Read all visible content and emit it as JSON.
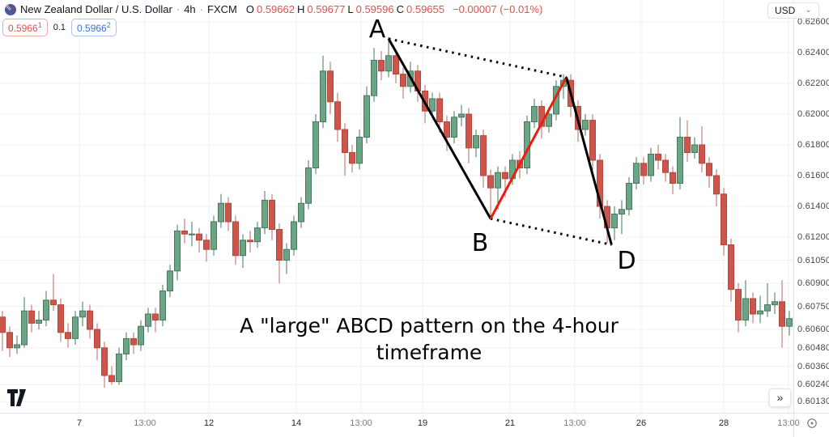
{
  "header": {
    "symbol_title": "New Zealand Dollar / U.S. Dollar",
    "separator": "·",
    "interval": "4h",
    "exchange": "FXCM",
    "ohlc": {
      "o_label": "O",
      "o": "0.59662",
      "h_label": "H",
      "h": "0.59677",
      "l_label": "L",
      "l": "0.59596",
      "c_label": "C",
      "c": "0.59655",
      "change": "−0.00007 (−0.01%)"
    },
    "bid": {
      "value": "0.5966",
      "sup": "1"
    },
    "spread": "0.1",
    "ask": {
      "value": "0.5966",
      "sup": "2"
    },
    "currency_button": {
      "label": "USD",
      "chevron": "⌄"
    }
  },
  "caption": {
    "line1": "A \"large\" ABCD pattern on the 4-hour",
    "line2": "timeframe"
  },
  "footer": {
    "collapse_button": "»"
  },
  "axes": {
    "price_labels": [
      "0.62600",
      "0.62400",
      "0.62200",
      "0.62000",
      "0.61800",
      "0.61600",
      "0.61400",
      "0.61200",
      "0.61050",
      "0.60900",
      "0.60750",
      "0.60600",
      "0.60480",
      "0.60360",
      "0.60240",
      "0.60130"
    ],
    "time_labels": [
      {
        "text": "7",
        "x": 98,
        "major": true
      },
      {
        "text": "13:00",
        "x": 179,
        "major": false
      },
      {
        "text": "12",
        "x": 258,
        "major": true
      },
      {
        "text": "14",
        "x": 366,
        "major": true
      },
      {
        "text": "13:00",
        "x": 446,
        "major": false
      },
      {
        "text": "19",
        "x": 522,
        "major": true
      },
      {
        "text": "21",
        "x": 630,
        "major": true
      },
      {
        "text": "13:00",
        "x": 710,
        "major": false
      },
      {
        "text": "26",
        "x": 792,
        "major": true
      },
      {
        "text": "28",
        "x": 894,
        "major": true
      },
      {
        "text": "13:00",
        "x": 974,
        "major": false
      }
    ]
  },
  "colors": {
    "up": "#6ba583",
    "up_border": "#47775f",
    "up_wick": "#47775f",
    "down": "#cc564c",
    "down_border": "#b2463c",
    "down_wick": "#bb6b60",
    "grid": "#eff2f5",
    "axis_line": "#e0e3eb",
    "pattern_black": "#000000",
    "pattern_red": "#ec1c0e",
    "bid_red": "#e0524e",
    "ask_blue": "#3c6ff0"
  },
  "chart_data": {
    "type": "candlestick",
    "interval": "4h",
    "ylim": [
      0.6009,
      0.6264
    ],
    "candles": [
      [
        0.6068,
        0.6072,
        0.6046,
        0.6058
      ],
      [
        0.6058,
        0.6062,
        0.6042,
        0.6048
      ],
      [
        0.6048,
        0.6056,
        0.6044,
        0.605
      ],
      [
        0.605,
        0.6081,
        0.6048,
        0.6072
      ],
      [
        0.6072,
        0.6076,
        0.6058,
        0.6064
      ],
      [
        0.6064,
        0.6072,
        0.606,
        0.6066
      ],
      [
        0.6066,
        0.6085,
        0.6062,
        0.6079
      ],
      [
        0.6079,
        0.6096,
        0.6072,
        0.6076
      ],
      [
        0.6076,
        0.608,
        0.6052,
        0.6058
      ],
      [
        0.6058,
        0.6064,
        0.6048,
        0.6054
      ],
      [
        0.6054,
        0.6072,
        0.605,
        0.6068
      ],
      [
        0.6068,
        0.6078,
        0.6062,
        0.6072
      ],
      [
        0.6072,
        0.6076,
        0.6054,
        0.606
      ],
      [
        0.606,
        0.6064,
        0.604,
        0.6048
      ],
      [
        0.6048,
        0.6052,
        0.6022,
        0.603
      ],
      [
        0.603,
        0.6036,
        0.6024,
        0.6026
      ],
      [
        0.6026,
        0.6048,
        0.6024,
        0.6044
      ],
      [
        0.6044,
        0.6058,
        0.604,
        0.6054
      ],
      [
        0.6054,
        0.6058,
        0.6044,
        0.605
      ],
      [
        0.605,
        0.6066,
        0.6046,
        0.6062
      ],
      [
        0.6062,
        0.6074,
        0.6058,
        0.607
      ],
      [
        0.607,
        0.6074,
        0.6058,
        0.6066
      ],
      [
        0.6066,
        0.6089,
        0.6062,
        0.6085
      ],
      [
        0.6085,
        0.6102,
        0.6081,
        0.6098
      ],
      [
        0.6098,
        0.6128,
        0.6092,
        0.6124
      ],
      [
        0.6124,
        0.6132,
        0.6116,
        0.6122
      ],
      [
        0.6122,
        0.613,
        0.6114,
        0.6122
      ],
      [
        0.6122,
        0.6126,
        0.611,
        0.6118
      ],
      [
        0.6118,
        0.6122,
        0.6104,
        0.6112
      ],
      [
        0.6112,
        0.6134,
        0.6108,
        0.613
      ],
      [
        0.613,
        0.6148,
        0.6126,
        0.6142
      ],
      [
        0.6142,
        0.6146,
        0.6124,
        0.613
      ],
      [
        0.613,
        0.6134,
        0.6102,
        0.6108
      ],
      [
        0.6108,
        0.6122,
        0.61,
        0.6118
      ],
      [
        0.6118,
        0.6124,
        0.611,
        0.6117
      ],
      [
        0.6117,
        0.613,
        0.6113,
        0.6126
      ],
      [
        0.6126,
        0.615,
        0.6122,
        0.6144
      ],
      [
        0.6144,
        0.6148,
        0.6118,
        0.6125
      ],
      [
        0.6125,
        0.6129,
        0.609,
        0.6105
      ],
      [
        0.6105,
        0.6116,
        0.6096,
        0.6112
      ],
      [
        0.6112,
        0.6134,
        0.6108,
        0.613
      ],
      [
        0.613,
        0.6146,
        0.6126,
        0.6142
      ],
      [
        0.6142,
        0.617,
        0.6138,
        0.6165
      ],
      [
        0.6165,
        0.62,
        0.6161,
        0.6195
      ],
      [
        0.6195,
        0.6238,
        0.6191,
        0.6228
      ],
      [
        0.6228,
        0.6234,
        0.62,
        0.6208
      ],
      [
        0.6208,
        0.6214,
        0.6182,
        0.619
      ],
      [
        0.619,
        0.6194,
        0.616,
        0.6175
      ],
      [
        0.6175,
        0.618,
        0.6162,
        0.6168
      ],
      [
        0.6168,
        0.619,
        0.6164,
        0.6185
      ],
      [
        0.6185,
        0.6218,
        0.6181,
        0.6212
      ],
      [
        0.6212,
        0.6243,
        0.6208,
        0.6235
      ],
      [
        0.6235,
        0.6241,
        0.6222,
        0.6228
      ],
      [
        0.6228,
        0.625,
        0.6224,
        0.6238
      ],
      [
        0.6238,
        0.6242,
        0.622,
        0.6226
      ],
      [
        0.6226,
        0.623,
        0.621,
        0.6218
      ],
      [
        0.6218,
        0.6234,
        0.6214,
        0.6228
      ],
      [
        0.6228,
        0.6232,
        0.6208,
        0.6215
      ],
      [
        0.6215,
        0.6219,
        0.6194,
        0.6202
      ],
      [
        0.6202,
        0.6214,
        0.6198,
        0.621
      ],
      [
        0.621,
        0.6214,
        0.6188,
        0.6195
      ],
      [
        0.6195,
        0.6199,
        0.6176,
        0.6185
      ],
      [
        0.6185,
        0.6202,
        0.6181,
        0.6198
      ],
      [
        0.6198,
        0.6206,
        0.6192,
        0.62
      ],
      [
        0.62,
        0.6204,
        0.6168,
        0.6178
      ],
      [
        0.6178,
        0.619,
        0.6172,
        0.6186
      ],
      [
        0.6186,
        0.619,
        0.6152,
        0.616
      ],
      [
        0.616,
        0.6164,
        0.6132,
        0.6152
      ],
      [
        0.6152,
        0.6166,
        0.6138,
        0.6162
      ],
      [
        0.6162,
        0.6166,
        0.6146,
        0.6158
      ],
      [
        0.6158,
        0.6174,
        0.6154,
        0.617
      ],
      [
        0.617,
        0.6176,
        0.6158,
        0.6165
      ],
      [
        0.6165,
        0.6199,
        0.6161,
        0.6195
      ],
      [
        0.6195,
        0.621,
        0.6191,
        0.6205
      ],
      [
        0.6205,
        0.6209,
        0.6184,
        0.6192
      ],
      [
        0.6192,
        0.6204,
        0.6188,
        0.62
      ],
      [
        0.62,
        0.6222,
        0.6196,
        0.6218
      ],
      [
        0.6218,
        0.6226,
        0.621,
        0.6222
      ],
      [
        0.6222,
        0.6226,
        0.6198,
        0.6205
      ],
      [
        0.6205,
        0.6209,
        0.6182,
        0.619
      ],
      [
        0.619,
        0.62,
        0.6186,
        0.6196
      ],
      [
        0.6196,
        0.62,
        0.6162,
        0.617
      ],
      [
        0.617,
        0.6174,
        0.6132,
        0.614
      ],
      [
        0.614,
        0.6144,
        0.6116,
        0.6126
      ],
      [
        0.6126,
        0.614,
        0.6118,
        0.6135
      ],
      [
        0.6135,
        0.6144,
        0.6122,
        0.6138
      ],
      [
        0.6138,
        0.6159,
        0.6134,
        0.6155
      ],
      [
        0.6155,
        0.6172,
        0.6151,
        0.6168
      ],
      [
        0.6168,
        0.6172,
        0.6154,
        0.616
      ],
      [
        0.616,
        0.6178,
        0.6156,
        0.6174
      ],
      [
        0.6174,
        0.618,
        0.6164,
        0.617
      ],
      [
        0.617,
        0.6174,
        0.6156,
        0.6162
      ],
      [
        0.6162,
        0.6166,
        0.6148,
        0.6155
      ],
      [
        0.6155,
        0.6198,
        0.6151,
        0.6185
      ],
      [
        0.6185,
        0.6196,
        0.6169,
        0.6175
      ],
      [
        0.6175,
        0.6185,
        0.6171,
        0.618
      ],
      [
        0.618,
        0.6192,
        0.6162,
        0.6168
      ],
      [
        0.6168,
        0.6172,
        0.6152,
        0.616
      ],
      [
        0.616,
        0.6164,
        0.614,
        0.6148
      ],
      [
        0.6148,
        0.6152,
        0.6108,
        0.6115
      ],
      [
        0.6115,
        0.6119,
        0.6078,
        0.6086
      ],
      [
        0.6086,
        0.609,
        0.6058,
        0.6066
      ],
      [
        0.6066,
        0.6092,
        0.6062,
        0.608
      ],
      [
        0.608,
        0.6084,
        0.6064,
        0.607
      ],
      [
        0.607,
        0.6082,
        0.6064,
        0.6072
      ],
      [
        0.6072,
        0.609,
        0.6068,
        0.6076
      ],
      [
        0.6076,
        0.6084,
        0.607,
        0.6078
      ],
      [
        0.6078,
        0.6092,
        0.6048,
        0.6062
      ],
      [
        0.6062,
        0.6072,
        0.6056,
        0.6067
      ]
    ],
    "pattern": {
      "name": "ABCD",
      "points": [
        {
          "label": "A",
          "bar": 53,
          "price": 0.6249,
          "label_pos": [
            466,
            46
          ]
        },
        {
          "label": "B",
          "bar": 67,
          "price": 0.6132,
          "label_pos": [
            593,
            310
          ]
        },
        {
          "label": "C",
          "bar": 77.4,
          "price": 0.6224,
          "show_label": false
        },
        {
          "label": "D",
          "bar": 83.6,
          "price": 0.6115,
          "label_pos": [
            774,
            332
          ]
        }
      ],
      "lines": [
        {
          "from": "A",
          "to": "C",
          "style": "dotted",
          "color": "#000000"
        },
        {
          "from": "B",
          "to": "D",
          "style": "dotted",
          "color": "#000000"
        },
        {
          "from": "A",
          "to": "B",
          "style": "solid",
          "color": "#000000"
        },
        {
          "from": "B",
          "to": "C",
          "style": "solid",
          "color": "#ec1c0e"
        },
        {
          "from": "C",
          "to": "D",
          "style": "solid",
          "color": "#000000"
        }
      ]
    }
  }
}
